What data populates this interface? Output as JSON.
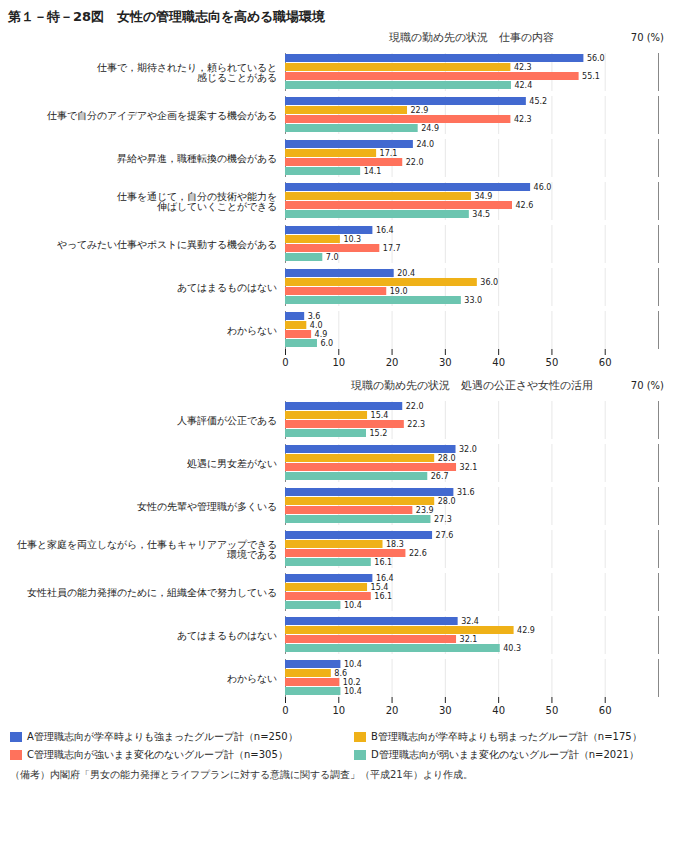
{
  "chart_data": [
    {
      "type": "bar",
      "orientation": "horizontal",
      "title": "第１－特－28図　女性の管理職志向を高める職場環境",
      "subtitle": "現職の勤め先の状況　仕事の内容",
      "xlabel": "70 (%)",
      "categories": [
        "仕事で，期待されたり，頼られていると\n感じることがある",
        "仕事で自分のアイデアや企画を提案する機会がある",
        "昇給や昇進，職種転換の機会がある",
        "仕事を通じて，自分の技術や能力を\n伸ばしていくことができる",
        "やってみたい仕事やポストに異動する機会がある",
        "あてはまるものはない",
        "わからない"
      ],
      "series": [
        {
          "name": "A管理職志向が学卒時よりも強まったグループ計（n=250）",
          "values": [
            56.0,
            45.2,
            24.0,
            46.0,
            16.4,
            20.4,
            3.6
          ],
          "value_labels": [
            "56.0",
            "45.2",
            "24.0",
            "46.0",
            "16.4",
            "20.4",
            "3.6"
          ]
        },
        {
          "name": "B管理職志向が学卒時よりも弱まったグループ計（n=175）",
          "values": [
            42.3,
            22.9,
            17.1,
            34.9,
            10.3,
            36.0,
            4.0
          ],
          "value_labels": [
            "42.3",
            "22.9",
            "17.1",
            "34.9",
            "10.3",
            "36.0",
            "4.0"
          ]
        },
        {
          "name": "C管理職志向が強いまま変化のないグループ計（n=305）",
          "values": [
            55.1,
            42.3,
            22.0,
            42.6,
            17.7,
            19.0,
            4.9
          ],
          "value_labels": [
            "55.1",
            "42.3",
            "22.0",
            "42.6",
            "17.7",
            "19.0",
            "4.9"
          ]
        },
        {
          "name": "D管理職志向が弱いまま変化のないグループ計（n=2021）",
          "values": [
            42.4,
            24.9,
            14.1,
            34.5,
            7.0,
            33.0,
            6.0
          ],
          "value_labels": [
            "42.4",
            "24.9",
            "14.1",
            "34.5",
            "7.0",
            "33.0",
            "6.0"
          ]
        }
      ],
      "xlim": [
        0,
        70
      ],
      "xticks": [
        0,
        10,
        20,
        30,
        40,
        50,
        60
      ],
      "grid": true,
      "data_labels": true
    },
    {
      "type": "bar",
      "orientation": "horizontal",
      "subtitle": "現職の勤め先の状況　処遇の公正さや女性の活用",
      "xlabel": "70 (%)",
      "categories": [
        "人事評価が公正である",
        "処遇に男女差がない",
        "女性の先輩や管理職が多くいる",
        "仕事と家庭を両立しながら，仕事もキャリアアップできる\n環境である",
        "女性社員の能力発揮のために，組織全体で努力している",
        "あてはまるものはない",
        "わからない"
      ],
      "series": [
        {
          "name": "A管理職志向が学卒時よりも強まったグループ計（n=250）",
          "values": [
            22.0,
            32.0,
            31.6,
            27.6,
            16.4,
            32.4,
            10.4
          ],
          "value_labels": [
            "22.0",
            "32.0",
            "31.6",
            "27.6",
            "16.4",
            "32.4",
            "10.4"
          ]
        },
        {
          "name": "B管理職志向が学卒時よりも弱まったグループ計（n=175）",
          "values": [
            15.4,
            28.0,
            28.0,
            18.3,
            15.4,
            42.9,
            8.6
          ],
          "value_labels": [
            "15.4",
            "28.0",
            "28.0",
            "18.3",
            "15.4",
            "42.9",
            "8.6"
          ]
        },
        {
          "name": "C管理職志向が強いまま変化のないグループ計（n=305）",
          "values": [
            22.3,
            32.1,
            23.9,
            22.6,
            16.1,
            32.1,
            10.2
          ],
          "value_labels": [
            "22.3",
            "32.1",
            "23.9",
            "22.6",
            "16.1",
            "32.1",
            "10.2"
          ]
        },
        {
          "name": "D管理職志向が弱いまま変化のないグループ計（n=2021）",
          "values": [
            15.2,
            26.7,
            27.3,
            16.1,
            10.4,
            40.3,
            10.4
          ],
          "value_labels": [
            "15.2",
            "26.7",
            "27.3",
            "16.1",
            "10.4",
            "40.3",
            "10.4"
          ]
        }
      ],
      "xlim": [
        0,
        70
      ],
      "xticks": [
        0,
        10,
        20,
        30,
        40,
        50,
        60
      ],
      "grid": true,
      "data_labels": true,
      "legend": "bottom",
      "annotations": [
        "（備考）内閣府「男女の能力発揮とライフプランに対する意識に関する調査」（平成21年）より作成。"
      ]
    }
  ]
}
